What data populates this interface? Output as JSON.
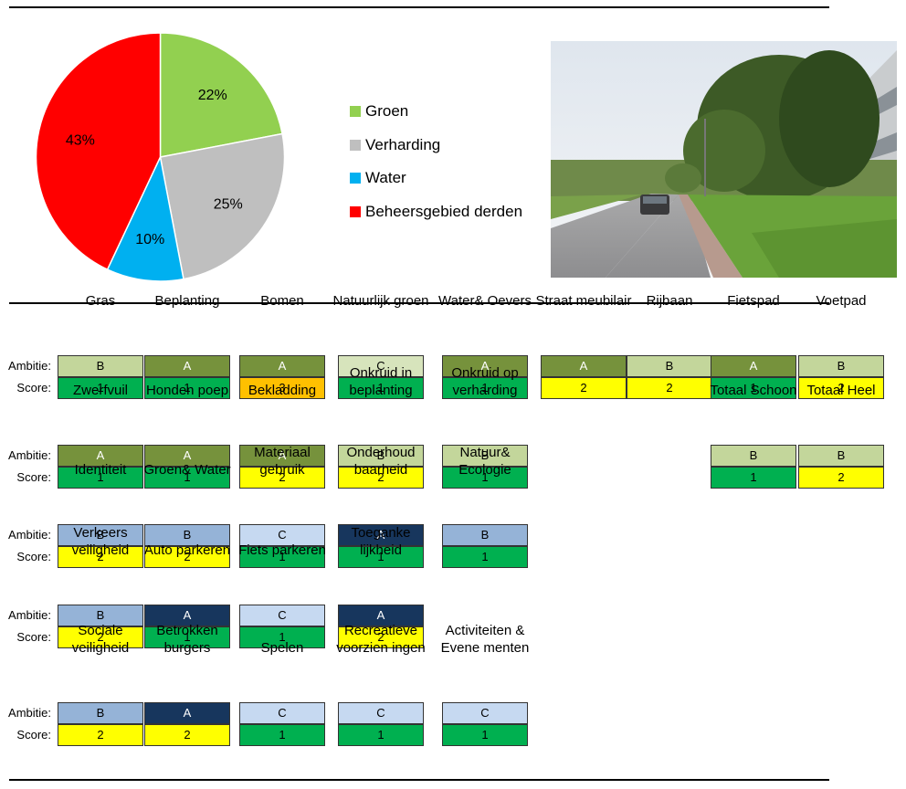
{
  "colors": {
    "groen": "#92D050",
    "verharding": "#BFBFBF",
    "water": "#00B0F0",
    "derden": "#FF0000",
    "ambitie": {
      "schoon": {
        "A": "#76923C",
        "B": "#C3D69B",
        "C": "#D7E4BC"
      },
      "comfort": {
        "A": "#17365D",
        "B": "#95B3D7",
        "C": "#C6D9F1"
      }
    },
    "score": {
      "1": "#00B050",
      "2": "#FFFF00",
      "3": "#FFC000"
    }
  },
  "chart_data": {
    "type": "pie",
    "title": "",
    "slices": [
      {
        "name": "Groen",
        "value": 22,
        "label": "22%"
      },
      {
        "name": "Verharding",
        "value": 25,
        "label": "25%"
      },
      {
        "name": "Water",
        "value": 10,
        "label": "10%"
      },
      {
        "name": "Beheersgebied derden",
        "value": 43,
        "label": "43%"
      }
    ],
    "legend_position": "right"
  },
  "labels": {
    "ambitie": "Ambitie:",
    "score": "Score:"
  },
  "photo": {
    "icon": "street-photo"
  },
  "grid": {
    "rows": [
      {
        "items": [
          {
            "title": "Gras",
            "ambitie": "B",
            "score": "1",
            "scheme": "schoon"
          },
          {
            "title": "Beplanting",
            "ambitie": "A",
            "score": "1",
            "scheme": "schoon"
          },
          {
            "title": "Bomen",
            "ambitie": "A",
            "score": "3",
            "scheme": "schoon"
          },
          {
            "title": "Natuurlijk groen",
            "ambitie": "C",
            "score": "1",
            "scheme": "schoon"
          },
          {
            "title": "Water& Oevers",
            "ambitie": "A",
            "score": "1",
            "scheme": "schoon"
          },
          {
            "title": "Straat meubilair",
            "ambitie": "A",
            "score": "2",
            "scheme": "schoon"
          },
          {
            "title": "Rijbaan",
            "ambitie": "B",
            "score": "2",
            "scheme": "schoon"
          },
          {
            "title": "Fietspad",
            "ambitie": "A",
            "score": "1",
            "scheme": "schoon"
          },
          {
            "title": "Voetpad",
            "ambitie": "B",
            "score": "2",
            "scheme": "schoon"
          }
        ]
      },
      {
        "items": [
          {
            "title": "Zwerfvuil",
            "ambitie": "A",
            "score": "1",
            "scheme": "schoon"
          },
          {
            "title": "Honden poep",
            "ambitie": "A",
            "score": "1",
            "scheme": "schoon"
          },
          {
            "title": "Bekladding",
            "ambitie": "A",
            "score": "2",
            "scheme": "schoon"
          },
          {
            "title": "Onkruid in beplanting",
            "ambitie": "B",
            "score": "2",
            "scheme": "schoon"
          },
          {
            "title": "Onkruid op verharding",
            "ambitie": "B",
            "score": "1",
            "scheme": "schoon"
          },
          {
            "title": "Totaal Schoon",
            "ambitie": "B",
            "score": "1",
            "scheme": "schoon"
          },
          {
            "title": "Totaal Heel",
            "ambitie": "B",
            "score": "2",
            "scheme": "schoon"
          }
        ]
      },
      {
        "items": [
          {
            "title": "Identiteit",
            "ambitie": "B",
            "score": "2",
            "scheme": "comfort"
          },
          {
            "title": "Groen& Water",
            "ambitie": "B",
            "score": "2",
            "scheme": "comfort"
          },
          {
            "title": "Materiaal gebruik",
            "ambitie": "C",
            "score": "1",
            "scheme": "comfort"
          },
          {
            "title": "Onderhoud baarheid",
            "ambitie": "A",
            "score": "1",
            "scheme": "comfort"
          },
          {
            "title": "Natuur& Ecologie",
            "ambitie": "B",
            "score": "1",
            "scheme": "comfort"
          }
        ]
      },
      {
        "items": [
          {
            "title": "Verkeers veiligheid",
            "ambitie": "B",
            "score": "2",
            "scheme": "comfort"
          },
          {
            "title": "Auto parkeren",
            "ambitie": "A",
            "score": "1",
            "scheme": "comfort"
          },
          {
            "title": "Fiets parkeren",
            "ambitie": "C",
            "score": "1",
            "scheme": "comfort"
          },
          {
            "title": "Toeganke lijkheid",
            "ambitie": "A",
            "score": "2",
            "scheme": "comfort"
          }
        ]
      },
      {
        "items": [
          {
            "title": "Sociale veiligheid",
            "ambitie": "B",
            "score": "2",
            "scheme": "comfort"
          },
          {
            "title": "Betrokken burgers",
            "ambitie": "A",
            "score": "2",
            "scheme": "comfort"
          },
          {
            "title": "Spelen",
            "ambitie": "C",
            "score": "1",
            "scheme": "comfort"
          },
          {
            "title": "Recreatieve voorzien ingen",
            "ambitie": "C",
            "score": "1",
            "scheme": "comfort"
          },
          {
            "title": "Activiteiten & Evene menten",
            "ambitie": "C",
            "score": "1",
            "scheme": "comfort"
          }
        ]
      }
    ]
  }
}
